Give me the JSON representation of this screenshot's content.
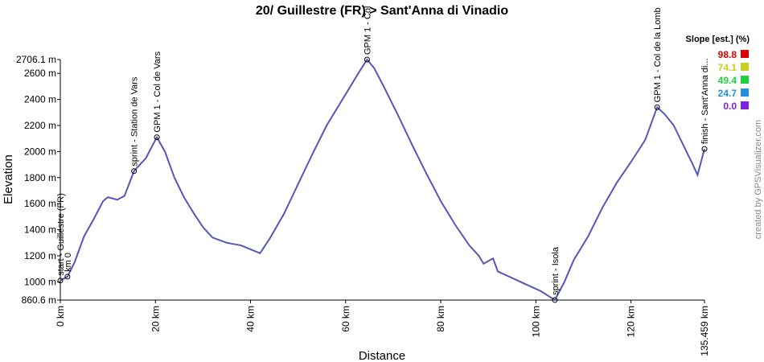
{
  "chart_data": {
    "type": "line",
    "title": "20/ Guillestre (FR) > Sant'Anna di Vinadio",
    "x_label": "Distance",
    "y_label": "Elevation",
    "x": [
      0,
      1.5,
      3,
      5,
      7,
      9,
      10,
      12,
      13.5,
      15.5,
      18,
      20.3,
      22,
      24,
      26,
      28,
      30,
      32,
      35,
      38,
      40,
      42,
      44,
      47,
      50,
      53,
      56,
      59,
      61,
      63,
      64.5,
      66,
      68,
      71,
      74,
      77,
      80,
      83,
      86,
      88,
      89,
      91,
      92,
      95,
      98,
      101,
      104,
      106,
      108,
      111,
      114,
      117,
      120,
      123,
      125.5,
      127,
      129,
      131,
      133,
      134,
      135.459
    ],
    "series": [
      {
        "name": "Elevation",
        "color": "#5557b8",
        "values": [
          1010,
          1040,
          1150,
          1350,
          1480,
          1620,
          1650,
          1630,
          1660,
          1850,
          1950,
          2110,
          2000,
          1800,
          1650,
          1530,
          1420,
          1340,
          1300,
          1280,
          1250,
          1220,
          1330,
          1520,
          1750,
          1980,
          2200,
          2380,
          2500,
          2620,
          2706,
          2640,
          2500,
          2280,
          2050,
          1830,
          1620,
          1440,
          1280,
          1200,
          1140,
          1180,
          1080,
          1030,
          980,
          930,
          861,
          1000,
          1170,
          1350,
          1570,
          1760,
          1920,
          2090,
          2340,
          2290,
          2200,
          2050,
          1900,
          1820,
          2020
        ]
      }
    ],
    "xlim": [
      0,
      135.459
    ],
    "xticks": [
      {
        "value": 0,
        "label": "0 km"
      },
      {
        "value": 20,
        "label": "20 km"
      },
      {
        "value": 40,
        "label": "40 km"
      },
      {
        "value": 60,
        "label": "60 km"
      },
      {
        "value": 80,
        "label": "80 km"
      },
      {
        "value": 100,
        "label": "100 km"
      },
      {
        "value": 120,
        "label": "120 km"
      },
      {
        "value": 135.459,
        "label": "135.459 km"
      }
    ],
    "ylim": [
      860.6,
      2706.1
    ],
    "yticks": [
      {
        "value": 860.6,
        "label": "860.6 m"
      },
      {
        "value": 1000,
        "label": "1000 m"
      },
      {
        "value": 1200,
        "label": "1200 m"
      },
      {
        "value": 1400,
        "label": "1400 m"
      },
      {
        "value": 1600,
        "label": "1600 m"
      },
      {
        "value": 1800,
        "label": "1800 m"
      },
      {
        "value": 2000,
        "label": "2000 m"
      },
      {
        "value": 2200,
        "label": "2200 m"
      },
      {
        "value": 2400,
        "label": "2400 m"
      },
      {
        "value": 2600,
        "label": "2600 m"
      },
      {
        "value": 2706.1,
        "label": "2706.1 m"
      }
    ],
    "waypoints": [
      {
        "label": "start - Guillestre (FR)",
        "x": 0,
        "y": 1010
      },
      {
        "label": "km 0",
        "x": 1.5,
        "y": 1040
      },
      {
        "label": "sprint - Station de Vars",
        "x": 15.5,
        "y": 1850
      },
      {
        "label": "GPM 1 - Col de Vars",
        "x": 20.3,
        "y": 2110
      },
      {
        "label": "GPM 1 - Col",
        "x": 64.5,
        "y": 2706
      },
      {
        "label": "sprint - Isola",
        "x": 104,
        "y": 861
      },
      {
        "label": "GPM 1 - Col de la Lomb",
        "x": 125.5,
        "y": 2340
      },
      {
        "label": "finish - Sant'Anna di...",
        "x": 135.459,
        "y": 2020
      }
    ],
    "legend_title": "Slope [est.] (%)",
    "slope_legend": [
      {
        "value": 98.8,
        "color": "#e00000"
      },
      {
        "value": 74.1,
        "color": "#c8d020"
      },
      {
        "value": 49.4,
        "color": "#20d040"
      },
      {
        "value": 24.7,
        "color": "#2090e0"
      },
      {
        "value": {
          "value": 0,
          "label": "0.0"
        },
        "color": "#8020e0"
      }
    ],
    "credit": "created by GPSVisualizer.com"
  }
}
